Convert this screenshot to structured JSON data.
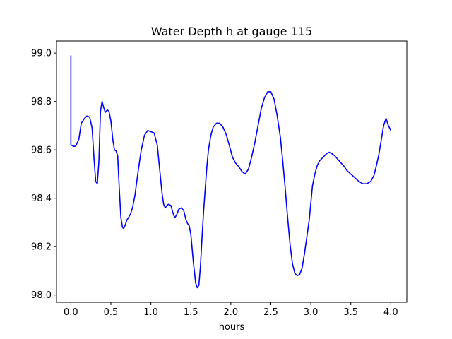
{
  "chart_data": {
    "type": "line",
    "title": "Water Depth h at gauge 115",
    "xlabel": "hours",
    "ylabel": "",
    "xlim": [
      -0.18,
      4.2
    ],
    "ylim": [
      97.97,
      99.05
    ],
    "xticks": [
      0.0,
      0.5,
      1.0,
      1.5,
      2.0,
      2.5,
      3.0,
      3.5,
      4.0
    ],
    "xtick_labels": [
      "0.0",
      "0.5",
      "1.0",
      "1.5",
      "2.0",
      "2.5",
      "3.0",
      "3.5",
      "4.0"
    ],
    "yticks": [
      98.0,
      98.2,
      98.4,
      98.6,
      98.8,
      99.0
    ],
    "ytick_labels": [
      "98.0",
      "98.2",
      "98.4",
      "98.6",
      "98.8",
      "99.0"
    ],
    "grid": false,
    "series": [
      {
        "color": "#0000ff",
        "x": [
          0.0,
          0.0,
          0.005,
          0.03,
          0.06,
          0.1,
          0.13,
          0.17,
          0.2,
          0.235,
          0.265,
          0.29,
          0.31,
          0.33,
          0.35,
          0.37,
          0.39,
          0.41,
          0.43,
          0.455,
          0.475,
          0.5,
          0.525,
          0.545,
          0.565,
          0.585,
          0.605,
          0.625,
          0.645,
          0.66,
          0.68,
          0.7,
          0.72,
          0.745,
          0.77,
          0.8,
          0.84,
          0.88,
          0.92,
          0.96,
          1.0,
          1.04,
          1.08,
          1.11,
          1.14,
          1.16,
          1.18,
          1.2,
          1.22,
          1.25,
          1.28,
          1.3,
          1.32,
          1.35,
          1.38,
          1.41,
          1.44,
          1.46,
          1.48,
          1.5,
          1.53,
          1.56,
          1.58,
          1.6,
          1.62,
          1.64,
          1.66,
          1.68,
          1.7,
          1.72,
          1.75,
          1.78,
          1.82,
          1.86,
          1.9,
          1.94,
          1.98,
          2.02,
          2.06,
          2.1,
          2.14,
          2.18,
          2.22,
          2.26,
          2.3,
          2.34,
          2.38,
          2.42,
          2.46,
          2.5,
          2.54,
          2.58,
          2.62,
          2.65,
          2.68,
          2.71,
          2.74,
          2.77,
          2.8,
          2.83,
          2.86,
          2.89,
          2.92,
          2.95,
          2.98,
          3.0,
          3.02,
          3.05,
          3.08,
          3.11,
          3.14,
          3.17,
          3.2,
          3.23,
          3.26,
          3.3,
          3.34,
          3.38,
          3.42,
          3.45,
          3.5,
          3.55,
          3.6,
          3.65,
          3.7,
          3.75,
          3.79,
          3.82,
          3.85,
          3.88,
          3.91,
          3.94,
          3.97,
          4.0
        ],
        "y": [
          98.99,
          98.62,
          98.62,
          98.615,
          98.615,
          98.645,
          98.71,
          98.73,
          98.74,
          98.735,
          98.69,
          98.56,
          98.47,
          98.46,
          98.55,
          98.76,
          98.8,
          98.775,
          98.755,
          98.765,
          98.76,
          98.72,
          98.64,
          98.6,
          98.595,
          98.575,
          98.44,
          98.32,
          98.28,
          98.275,
          98.29,
          98.31,
          98.32,
          98.335,
          98.36,
          98.41,
          98.51,
          98.6,
          98.66,
          98.68,
          98.675,
          98.67,
          98.62,
          98.52,
          98.42,
          98.375,
          98.36,
          98.37,
          98.375,
          98.37,
          98.335,
          98.32,
          98.33,
          98.355,
          98.36,
          98.35,
          98.31,
          98.295,
          98.285,
          98.25,
          98.14,
          98.05,
          98.03,
          98.04,
          98.12,
          98.24,
          98.35,
          98.44,
          98.53,
          98.6,
          98.66,
          98.695,
          98.71,
          98.71,
          98.695,
          98.665,
          98.62,
          98.57,
          98.545,
          98.53,
          98.51,
          98.5,
          98.52,
          98.57,
          98.63,
          98.7,
          98.77,
          98.815,
          98.84,
          98.84,
          98.81,
          98.74,
          98.65,
          98.55,
          98.44,
          98.32,
          98.21,
          98.13,
          98.09,
          98.08,
          98.085,
          98.11,
          98.17,
          98.24,
          98.31,
          98.38,
          98.45,
          98.5,
          98.535,
          98.555,
          98.565,
          98.575,
          98.585,
          98.59,
          98.585,
          98.575,
          98.56,
          98.545,
          98.53,
          98.515,
          98.5,
          98.485,
          98.47,
          98.46,
          98.46,
          98.47,
          98.495,
          98.535,
          98.58,
          98.64,
          98.7,
          98.73,
          98.7,
          98.68
        ]
      }
    ]
  }
}
